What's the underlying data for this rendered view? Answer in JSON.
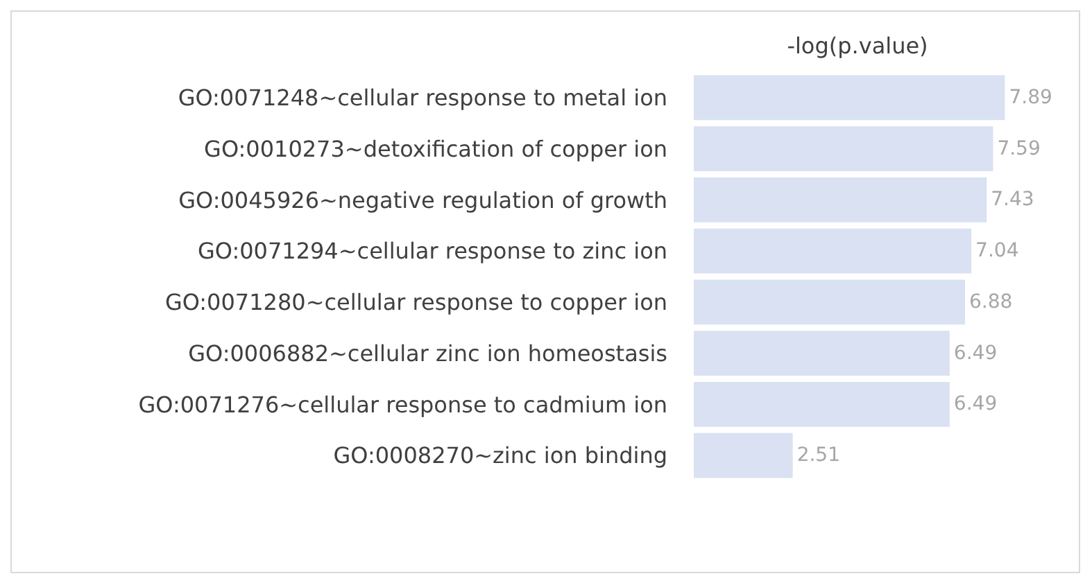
{
  "chart_data": {
    "type": "bar",
    "orientation": "horizontal",
    "title": "-log(p.value)",
    "categories": [
      "GO:0071248~cellular response to metal ion",
      "GO:0010273~detoxification of copper ion",
      "GO:0045926~negative regulation of growth",
      "GO:0071294~cellular response to zinc ion",
      "GO:0071280~cellular response to copper ion",
      "GO:0006882~cellular zinc ion homeostasis",
      "GO:0071276~cellular response to cadmium ion",
      "GO:0008270~zinc ion binding"
    ],
    "values": [
      7.89,
      7.59,
      7.43,
      7.04,
      6.88,
      6.49,
      6.49,
      2.51
    ],
    "color": "#d9e1f2",
    "data_labels": true,
    "tick_labels": "y"
  }
}
